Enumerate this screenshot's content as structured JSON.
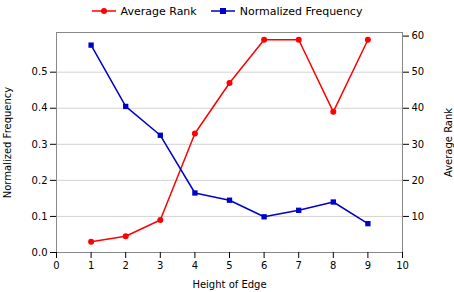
{
  "chart_data": {
    "type": "line",
    "x": [
      1,
      2,
      3,
      4,
      5,
      6,
      7,
      8,
      9
    ],
    "series": [
      {
        "name": "Average Rank",
        "color": "#ff0000",
        "marker": "circle",
        "axis": "y2",
        "values": [
          3,
          4.5,
          9,
          33,
          47,
          59,
          59,
          39,
          59
        ]
      },
      {
        "name": "Normalized Frequency",
        "color": "#0000cc",
        "marker": "square",
        "values": [
          0.575,
          0.405,
          0.325,
          0.165,
          0.145,
          0.099,
          0.117,
          0.14,
          0.08
        ]
      }
    ],
    "xlabel": "Height of Edge",
    "ylabel": "Normalized Frequency",
    "y2label": "Average Rank",
    "xlim": [
      0,
      10
    ],
    "xticks": [
      0,
      1,
      2,
      3,
      4,
      5,
      6,
      7,
      8,
      9,
      10
    ],
    "ylim": [
      0.0,
      0.61
    ],
    "yticks": [
      {
        "value": 0,
        "label": "0.0"
      },
      0.1,
      0.2,
      0.3,
      0.4,
      0.5
    ],
    "y2lim": [
      0,
      61
    ],
    "y2ticks": [
      10,
      20,
      30,
      40,
      50,
      60
    ],
    "grid": true,
    "legend": "top"
  }
}
